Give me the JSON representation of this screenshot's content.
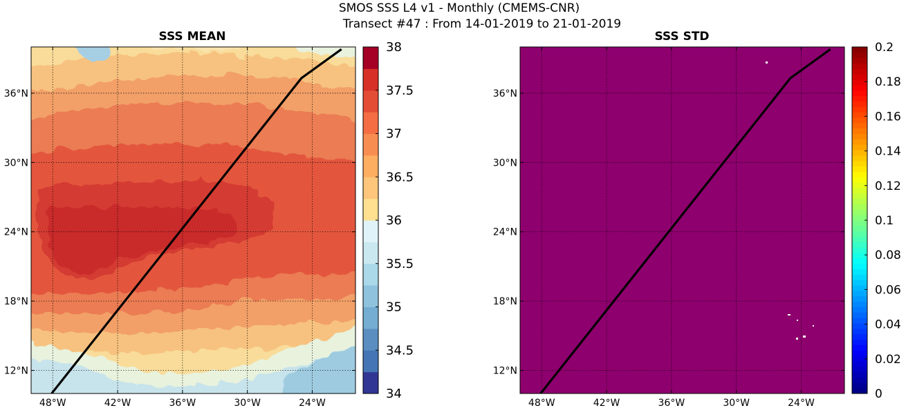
{
  "figure": {
    "title_line1": "SMOS SSS L4 v1 - Monthly (CMEMS-CNR)",
    "title_line2": "Transect #47 : From 14-01-2019 to 21-01-2019"
  },
  "panels": [
    {
      "title": "SSS MEAN",
      "colorbar": {
        "min": 34,
        "max": 38,
        "ticks": [
          "34",
          "34.5",
          "35",
          "35.5",
          "36",
          "36.5",
          "37",
          "37.5",
          "38"
        ],
        "colormap": "RdYlBu_r",
        "levels": 16
      }
    },
    {
      "title": "SSS STD",
      "colorbar": {
        "min": 0,
        "max": 0.2,
        "ticks": [
          "0",
          "0.02",
          "0.04",
          "0.06",
          "0.08",
          "0.1",
          "0.12",
          "0.14",
          "0.16",
          "0.18",
          "0.2"
        ],
        "colormap": "jet",
        "fill_color": "#8e006e"
      }
    }
  ],
  "map": {
    "lon_range": [
      -50,
      -20
    ],
    "lat_range": [
      10,
      40
    ],
    "lon_ticks": [
      "48°W",
      "42°W",
      "36°W",
      "30°W",
      "24°W"
    ],
    "lon_tick_values": [
      -48,
      -42,
      -36,
      -30,
      -24
    ],
    "lat_ticks": [
      "12°N",
      "18°N",
      "24°N",
      "30°N",
      "36°N"
    ],
    "lat_tick_values": [
      12,
      18,
      24,
      30,
      36
    ]
  },
  "transect": {
    "points": [
      [
        -48.1,
        10.0
      ],
      [
        -25.0,
        37.3
      ],
      [
        -21.3,
        39.8
      ]
    ]
  }
}
